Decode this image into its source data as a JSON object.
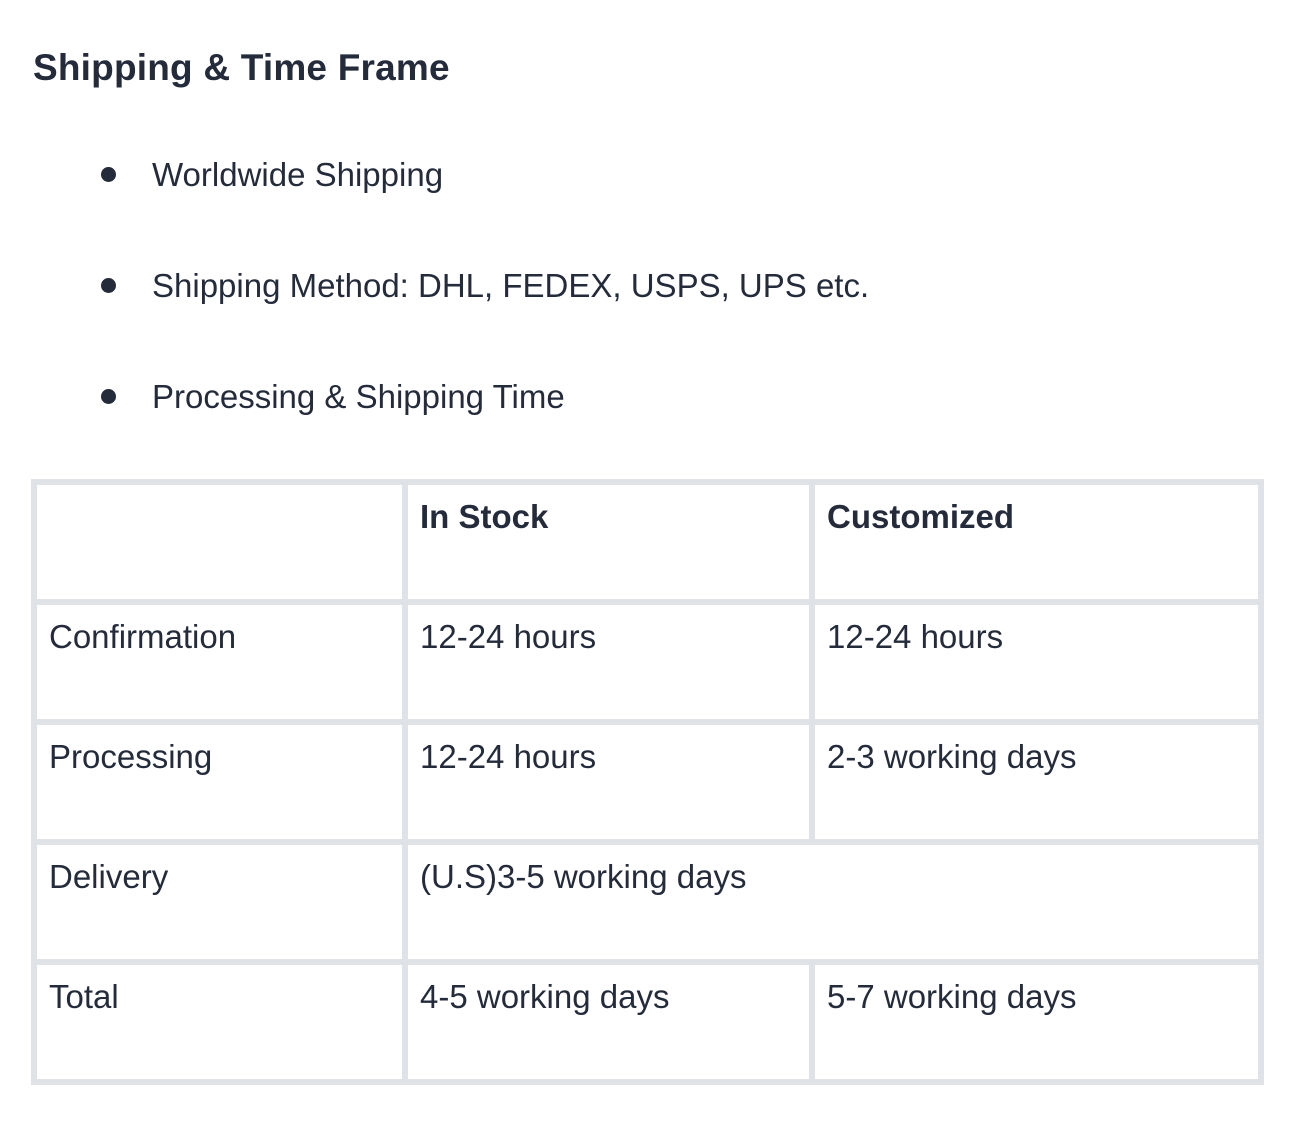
{
  "page": {
    "title": "Shipping & Time Frame",
    "bullets": [
      "Worldwide Shipping",
      "Shipping Method: DHL, FEDEX, USPS, UPS etc.",
      "Processing & Shipping Time"
    ]
  },
  "table": {
    "headers": [
      "",
      "In Stock",
      "Customized"
    ],
    "rows": [
      {
        "label": "Confirmation",
        "in_stock": "12-24 hours",
        "customized": "12-24 hours"
      },
      {
        "label": "Processing",
        "in_stock": "12-24 hours",
        "customized": "2-3 working days"
      },
      {
        "label": "Delivery",
        "combined": "(U.S)3-5 working days"
      },
      {
        "label": "Total",
        "in_stock": "4-5 working days",
        "customized": "5-7 working days"
      }
    ]
  },
  "colors": {
    "text": "#242b3b",
    "table_border": "#dfe3e8",
    "background": "#ffffff"
  }
}
